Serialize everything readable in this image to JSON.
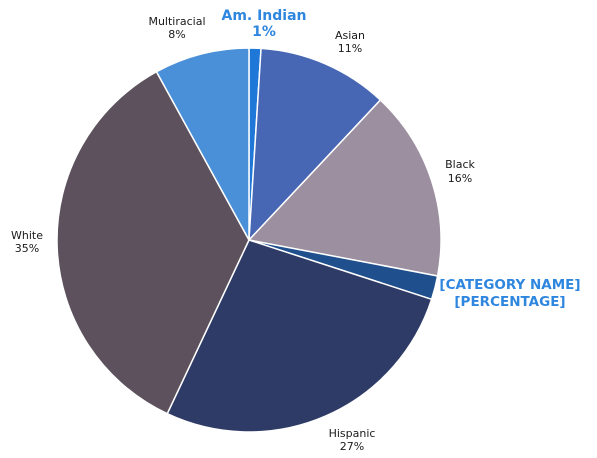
{
  "chart_data": {
    "type": "pie",
    "start_angle_deg": 0,
    "direction": "clockwise",
    "slices": [
      {
        "name": "Am. Indian",
        "value": 1,
        "label_name": "Am. Indian",
        "label_value": "1%",
        "color": "#1f78d8",
        "label_style": "highlight-big"
      },
      {
        "name": "Asian",
        "value": 11,
        "label_name": "Asian",
        "label_value": "11%",
        "color": "#4767b4",
        "label_style": "normal"
      },
      {
        "name": "Black",
        "value": 16,
        "label_name": "Black",
        "label_value": "16%",
        "color": "#9c8f9f",
        "label_style": "normal"
      },
      {
        "name": "",
        "value": 2,
        "label_name": "[CATEGORY NAME]",
        "label_value": "[PERCENTAGE]",
        "color": "#1f4f8c",
        "label_style": "highlight-callout"
      },
      {
        "name": "Hispanic",
        "value": 27,
        "label_name": "Hispanic",
        "label_value": "27%",
        "color": "#2e3b66",
        "label_style": "normal"
      },
      {
        "name": "White",
        "value": 35,
        "label_name": "White",
        "label_value": "35%",
        "color": "#5c515d",
        "label_style": "normal"
      },
      {
        "name": "Multiracial",
        "value": 8,
        "label_name": "Multiracial",
        "label_value": "8%",
        "color": "#4a90d9",
        "label_style": "normal"
      }
    ],
    "highlight_label_color": "#2e86de",
    "border_color": "#ffffff",
    "legend": "none"
  }
}
